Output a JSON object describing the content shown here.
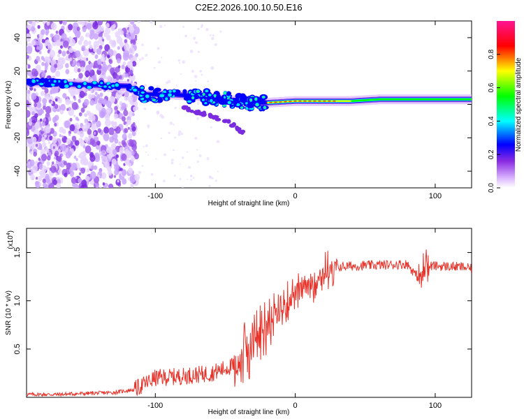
{
  "figure": {
    "title": "C2E2.2026.100.10.50.E16"
  },
  "chart_data": [
    {
      "type": "heatmap",
      "title": "C2E2.2026.100.10.50.E16",
      "xlabel": "Height of straight line (km)",
      "ylabel": "Frequency (Hz)",
      "xlim": [
        -192,
        126
      ],
      "ylim": [
        -50,
        50
      ],
      "xticks": [
        -100,
        0,
        100
      ],
      "yticks": [
        -40,
        -20,
        0,
        20,
        40
      ],
      "xtick_labels": [
        "-100",
        "0",
        "100"
      ],
      "ytick_labels": [
        "-40",
        "-20",
        "0",
        "20",
        "40"
      ],
      "colorbar": {
        "label": "Normalized spectral amplitude",
        "range": [
          0,
          1
        ],
        "ticks": [
          0.0,
          0.2,
          0.4,
          0.6,
          0.8
        ],
        "tick_labels": [
          "0.0",
          "0.2",
          "0.4",
          "0.6",
          "0.8"
        ],
        "colormap": [
          "#ffffff",
          "#8a2be2",
          "#0000ff",
          "#00ffff",
          "#00ff00",
          "#ffff00",
          "#ff0000",
          "#ff1493"
        ]
      },
      "noise_region_x": [
        -192,
        -113
      ],
      "main_trace": [
        {
          "x": -192,
          "y": 13
        },
        {
          "x": -180,
          "y": 13
        },
        {
          "x": -160,
          "y": 12
        },
        {
          "x": -120,
          "y": 11
        },
        {
          "x": -110,
          "y": 6
        },
        {
          "x": -90,
          "y": 6
        },
        {
          "x": -70,
          "y": 5
        },
        {
          "x": -50,
          "y": 3
        },
        {
          "x": -30,
          "y": 1
        },
        {
          "x": -20,
          "y": 1
        },
        {
          "x": 0,
          "y": 2
        },
        {
          "x": 20,
          "y": 2
        },
        {
          "x": 40,
          "y": 2
        },
        {
          "x": 60,
          "y": 3
        },
        {
          "x": 80,
          "y": 3
        },
        {
          "x": 100,
          "y": 3
        },
        {
          "x": 126,
          "y": 3
        }
      ],
      "secondary_branch": [
        {
          "x": -80,
          "y": -2
        },
        {
          "x": -60,
          "y": -7
        },
        {
          "x": -45,
          "y": -12
        },
        {
          "x": -37,
          "y": -17
        }
      ]
    },
    {
      "type": "line",
      "xlabel": "Height of straight line (km)",
      "ylabel": "SNR (10 * v/v)",
      "y_multiplier": "(x10",
      "y_multiplier_exp": "4",
      "y_multiplier_close": ")",
      "xlim": [
        -192,
        126
      ],
      "ylim": [
        0,
        1.75
      ],
      "xticks": [
        -100,
        0,
        100
      ],
      "yticks": [
        0.5,
        1.0,
        1.5
      ],
      "xtick_labels": [
        "-100",
        "0",
        "100"
      ],
      "ytick_labels": [
        "0.5",
        "1.0",
        "1.5"
      ],
      "color": "#e8332a",
      "series": [
        {
          "name": "SNR",
          "x": [
            -192,
            -170,
            -150,
            -130,
            -115,
            -100,
            -80,
            -60,
            -40,
            -30,
            -20,
            -15,
            -10,
            -5,
            0,
            10,
            20,
            30,
            40,
            60,
            80,
            90,
            92,
            95,
            100,
            120,
            126
          ],
          "values": [
            0.03,
            0.03,
            0.04,
            0.05,
            0.08,
            0.2,
            0.22,
            0.25,
            0.35,
            0.6,
            0.75,
            0.82,
            0.9,
            1.0,
            1.08,
            1.15,
            1.3,
            1.35,
            1.36,
            1.37,
            1.38,
            1.2,
            1.4,
            1.36,
            1.36,
            1.35,
            1.33
          ]
        }
      ]
    }
  ]
}
